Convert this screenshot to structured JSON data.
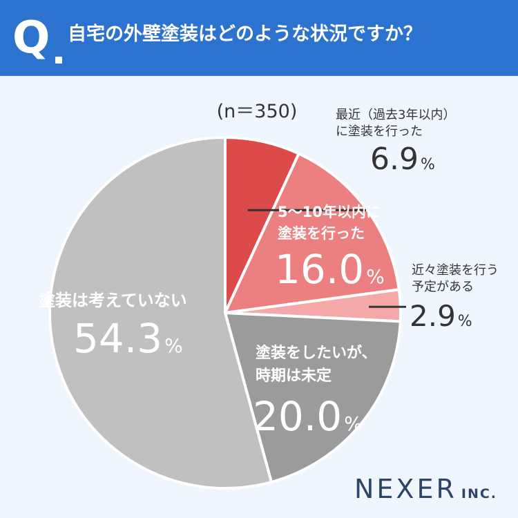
{
  "header": {
    "q_label": "Q",
    "question": "自宅の外壁塗装はどのような状況ですか？"
  },
  "colors": {
    "header_bg": "#2c73cf",
    "background": "#f0f6fe"
  },
  "chart_data": {
    "type": "pie",
    "n_label": "(n＝350)",
    "percent_unit": "%",
    "slices": [
      {
        "label_lines": [
          "最近（過去3年以内）",
          "に塗装を行った"
        ],
        "value": 6.9,
        "value_text": "6.9",
        "color": "#dc4a4a"
      },
      {
        "label_lines": [
          "5～10年以内に",
          "塗装を行った"
        ],
        "value": 16.0,
        "value_text": "16.0",
        "color": "#ec7f7f"
      },
      {
        "label_lines": [
          "近々塗装を行う",
          "予定がある"
        ],
        "value": 2.9,
        "value_text": "2.9",
        "color": "#f4a8a8"
      },
      {
        "label_lines": [
          "塗装をしたいが、",
          "時期は未定"
        ],
        "value": 20.0,
        "value_text": "20.0",
        "color": "#9b9b9b"
      },
      {
        "label_lines": [
          "塗装は考えていない"
        ],
        "value": 54.3,
        "value_text": "54.3",
        "color": "#c0c0c0"
      }
    ]
  },
  "logo": {
    "main": "NEXER",
    "sub": "INC."
  }
}
